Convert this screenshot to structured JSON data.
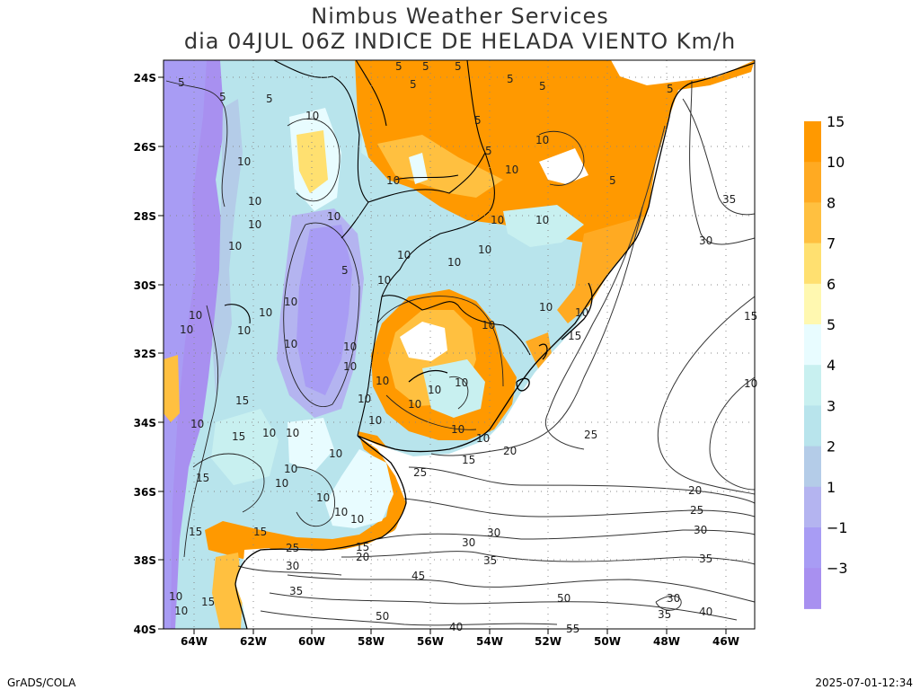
{
  "header": {
    "title": "Nimbus Weather Services",
    "subtitle": "dia 04JUL 06Z INDICE DE HELADA VIENTO Km/h"
  },
  "axes": {
    "lat_ticks": [
      "24S",
      "26S",
      "28S",
      "30S",
      "32S",
      "34S",
      "36S",
      "38S",
      "40S"
    ],
    "lon_ticks": [
      "64W",
      "62W",
      "60W",
      "58W",
      "56W",
      "54W",
      "52W",
      "50W",
      "48W",
      "46W"
    ]
  },
  "colorbar": {
    "labels": [
      "15",
      "10",
      "8",
      "7",
      "6",
      "5",
      "4",
      "3",
      "2",
      "1",
      "−1",
      "−3"
    ],
    "colors": [
      "#ff9900",
      "#ffaa22",
      "#ffc040",
      "#ffe070",
      "#fff8b0",
      "#e8fcff",
      "#c8f0f0",
      "#b8e4ec",
      "#b4cce8",
      "#b4b4f0",
      "#a89cf4",
      "#a890f0"
    ]
  },
  "contour_labels": {
    "wind": [
      "45",
      "50",
      "55",
      "40",
      "35",
      "30",
      "25",
      "20",
      "15",
      "10"
    ],
    "frost": [
      "5",
      "10",
      "15"
    ]
  },
  "footer": {
    "left": "GrADS/COLA",
    "right": "2025-07-01-12:34"
  }
}
